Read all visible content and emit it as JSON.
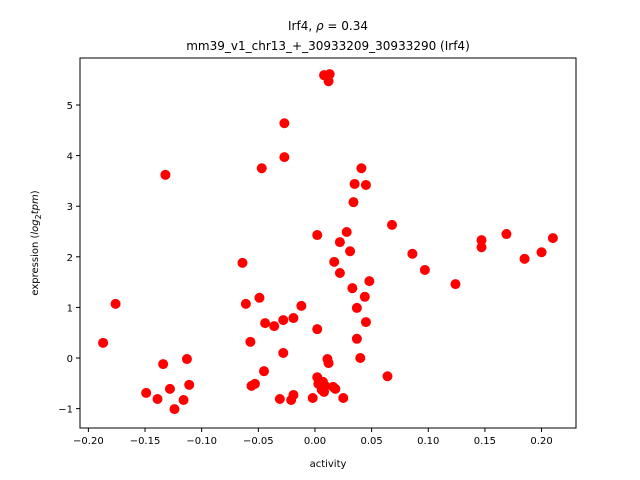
{
  "chart_data": {
    "type": "scatter",
    "title_line1_prefix": "Irf4, ",
    "title_line1_symbol": "ρ",
    "title_line1_suffix": " = 0.34",
    "title_line2": "mm39_v1_chr13_+_30933209_30933290 (Irf4)",
    "xlabel": "activity",
    "ylabel_prefix": "expression (",
    "ylabel_math": "log",
    "ylabel_sub": "2",
    "ylabel_math2": "tpm",
    "ylabel_suffix": ")",
    "xlim": [
      -0.2074,
      0.2304
    ],
    "ylim": [
      -1.383,
      5.929
    ],
    "xticks": [
      -0.2,
      -0.15,
      -0.1,
      -0.05,
      0.0,
      0.05,
      0.1,
      0.15,
      0.2
    ],
    "xtick_labels": [
      "−0.20",
      "−0.15",
      "−0.10",
      "−0.05",
      "0.00",
      "0.05",
      "0.10",
      "0.15",
      "0.20"
    ],
    "yticks": [
      -1,
      0,
      1,
      2,
      3,
      4,
      5
    ],
    "ytick_labels": [
      "−1",
      "0",
      "1",
      "2",
      "3",
      "4",
      "5"
    ],
    "grid": false,
    "marker_color": "#ff0000",
    "points": [
      [
        -0.187,
        0.3
      ],
      [
        -0.176,
        1.07
      ],
      [
        -0.149,
        -0.69
      ],
      [
        -0.139,
        -0.81
      ],
      [
        -0.134,
        -0.12
      ],
      [
        -0.132,
        3.62
      ],
      [
        -0.128,
        -0.61
      ],
      [
        -0.124,
        -1.01
      ],
      [
        -0.116,
        -0.83
      ],
      [
        -0.113,
        -0.02
      ],
      [
        -0.111,
        -0.53
      ],
      [
        -0.064,
        1.88
      ],
      [
        -0.061,
        1.07
      ],
      [
        -0.057,
        0.32
      ],
      [
        -0.056,
        -0.55
      ],
      [
        -0.053,
        -0.51
      ],
      [
        -0.049,
        1.19
      ],
      [
        -0.047,
        3.75
      ],
      [
        -0.045,
        -0.26
      ],
      [
        -0.044,
        0.69
      ],
      [
        -0.036,
        0.63
      ],
      [
        -0.031,
        -0.81
      ],
      [
        -0.028,
        0.75
      ],
      [
        -0.028,
        0.1
      ],
      [
        -0.027,
        4.64
      ],
      [
        -0.027,
        3.97
      ],
      [
        -0.021,
        -0.83
      ],
      [
        -0.019,
        0.79
      ],
      [
        -0.019,
        -0.73
      ],
      [
        -0.012,
        1.03
      ],
      [
        -0.002,
        -0.79
      ],
      [
        0.002,
        2.43
      ],
      [
        0.002,
        0.57
      ],
      [
        0.002,
        -0.38
      ],
      [
        0.003,
        -0.51
      ],
      [
        0.006,
        -0.63
      ],
      [
        0.007,
        -0.47
      ],
      [
        0.008,
        5.59
      ],
      [
        0.008,
        -0.67
      ],
      [
        0.009,
        -0.55
      ],
      [
        0.011,
        -0.02
      ],
      [
        0.012,
        -0.1
      ],
      [
        0.012,
        5.47
      ],
      [
        0.013,
        5.61
      ],
      [
        0.016,
        -0.57
      ],
      [
        0.017,
        1.9
      ],
      [
        0.018,
        -0.61
      ],
      [
        0.022,
        2.29
      ],
      [
        0.022,
        1.68
      ],
      [
        0.025,
        -0.79
      ],
      [
        0.028,
        2.49
      ],
      [
        0.031,
        2.11
      ],
      [
        0.033,
        1.38
      ],
      [
        0.034,
        3.08
      ],
      [
        0.035,
        3.44
      ],
      [
        0.037,
        0.99
      ],
      [
        0.037,
        0.38
      ],
      [
        0.04,
        0.0
      ],
      [
        0.041,
        3.75
      ],
      [
        0.044,
        1.21
      ],
      [
        0.045,
        0.71
      ],
      [
        0.045,
        3.42
      ],
      [
        0.048,
        1.52
      ],
      [
        0.064,
        -0.36
      ],
      [
        0.068,
        2.63
      ],
      [
        0.086,
        2.06
      ],
      [
        0.097,
        1.74
      ],
      [
        0.124,
        1.46
      ],
      [
        0.147,
        2.33
      ],
      [
        0.147,
        2.19
      ],
      [
        0.169,
        2.45
      ],
      [
        0.185,
        1.96
      ],
      [
        0.2,
        2.09
      ],
      [
        0.21,
        2.37
      ]
    ]
  }
}
